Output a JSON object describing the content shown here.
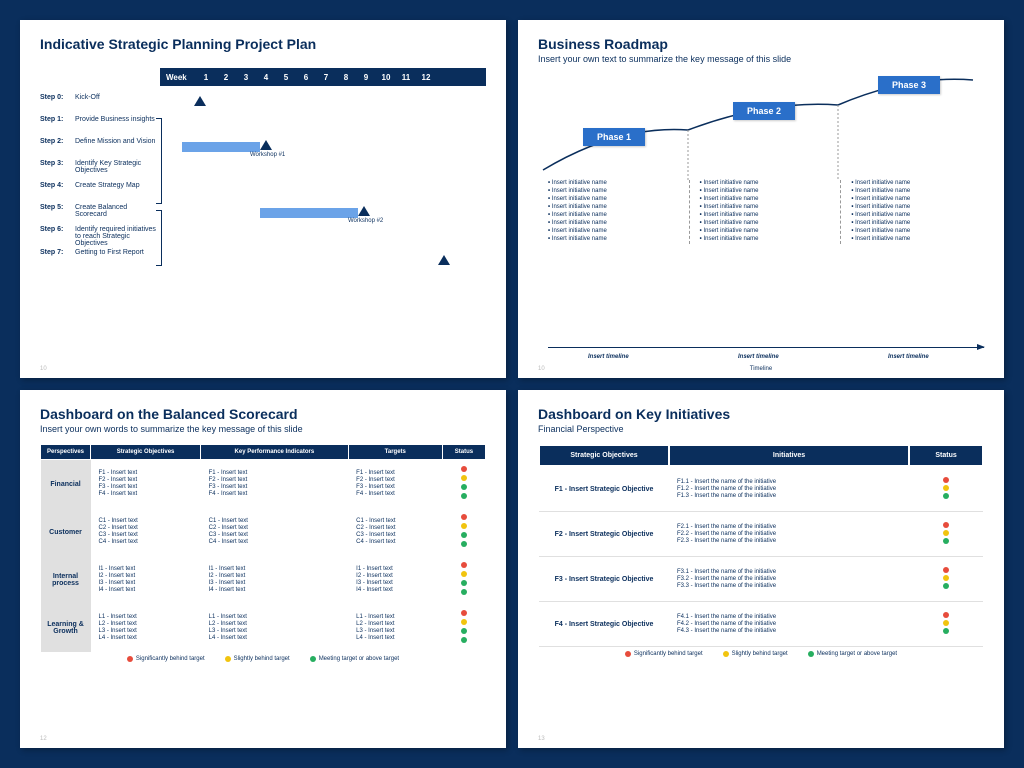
{
  "colors": {
    "bg": "#0a2e5c",
    "slide": "#ffffff",
    "phase_box": "#2a6fc9",
    "bar": "#6ba3e8",
    "grey": "#e0e0e0",
    "red": "#e74c3c",
    "yellow": "#f1c40f",
    "green": "#27ae60"
  },
  "slide1": {
    "title": "Indicative Strategic Planning Project Plan",
    "week_label": "Week",
    "weeks": [
      "1",
      "2",
      "3",
      "4",
      "5",
      "6",
      "7",
      "8",
      "9",
      "10",
      "11",
      "12"
    ],
    "steps": [
      {
        "lbl": "Step 0:",
        "txt": "Kick-Off"
      },
      {
        "lbl": "Step 1:",
        "txt": "Provide Business insights"
      },
      {
        "lbl": "Step 2:",
        "txt": "Define Mission and Vision"
      },
      {
        "lbl": "Step 3:",
        "txt": "Identify Key Strategic Objectives"
      },
      {
        "lbl": "Step 4:",
        "txt": "Create Strategy Map"
      },
      {
        "lbl": "Step 5:",
        "txt": "Create Balanced Scorecard"
      },
      {
        "lbl": "Step 6:",
        "txt": "Identify required initiatives to reach Strategic Objectives"
      },
      {
        "lbl": "Step 7:",
        "txt": "Getting to First Report"
      }
    ],
    "workshop1": "Workshop #1",
    "workshop2": "Workshop #2",
    "pagenum": "10"
  },
  "slide2": {
    "title": "Business Roadmap",
    "subtitle": "Insert your own text to summarize the key message of this slide",
    "phases": [
      "Phase 1",
      "Phase 2",
      "Phase 3"
    ],
    "bullet": "Insert initiative name",
    "bullet_count": 8,
    "timeline_label": "Insert timeline",
    "timeline_caption": "Timeline",
    "pagenum": "10"
  },
  "slide3": {
    "title": "Dashboard on the Balanced Scorecard",
    "subtitle": "Insert your own words to summarize the key message of this slide",
    "headers": [
      "Perspectives",
      "Strategic Objectives",
      "Key Performance Indicators",
      "Targets",
      "Status"
    ],
    "rows": [
      {
        "persp": "Financial",
        "prefix": "F",
        "statuses": [
          "r",
          "y",
          "g",
          "g"
        ]
      },
      {
        "persp": "Customer",
        "prefix": "C",
        "statuses": [
          "r",
          "y",
          "g",
          "g"
        ]
      },
      {
        "persp": "Internal process",
        "prefix": "I",
        "statuses": [
          "r",
          "y",
          "g",
          "g"
        ]
      },
      {
        "persp": "Learning & Growth",
        "prefix": "L",
        "statuses": [
          "r",
          "y",
          "g",
          "g"
        ]
      }
    ],
    "cell_suffix": " - Insert text",
    "legend": [
      "Significantly behind target",
      "Slightly behind target",
      "Meeting target or above target"
    ],
    "pagenum": "12"
  },
  "slide4": {
    "title": "Dashboard on Key Initiatives",
    "subtitle": "Financial Perspective",
    "headers": [
      "Strategic Objectives",
      "Initiatives",
      "Status"
    ],
    "rows": [
      {
        "obj": "F1 - Insert Strategic Objective",
        "inits": [
          "F1.1 - Insert the name of the initiative",
          "F1.2 - Insert the name of the initiative",
          "F1.3 - Insert the name of the initiative"
        ],
        "statuses": [
          "r",
          "y",
          "g"
        ]
      },
      {
        "obj": "F2 - Insert Strategic Objective",
        "inits": [
          "F2.1 - Insert the name of the initiative",
          "F2.2 - Insert the name of the initiative",
          "F2.3 - Insert the name of the initiative"
        ],
        "statuses": [
          "r",
          "y",
          "g"
        ]
      },
      {
        "obj": "F3 - Insert Strategic Objective",
        "inits": [
          "F3.1 - Insert the name of the initiative",
          "F3.2 - Insert the name of the initiative",
          "F3.3 - Insert the name of the initiative"
        ],
        "statuses": [
          "r",
          "y",
          "g"
        ]
      },
      {
        "obj": "F4 - Insert Strategic Objective",
        "inits": [
          "F4.1 - Insert the name of the initiative",
          "F4.2 - Insert the name of the initiative",
          "F4.3 - Insert the name of the initiative"
        ],
        "statuses": [
          "r",
          "y",
          "g"
        ]
      }
    ],
    "legend": [
      "Significantly behind target",
      "Slightly behind target",
      "Meeting target or above target"
    ],
    "pagenum": "13"
  }
}
